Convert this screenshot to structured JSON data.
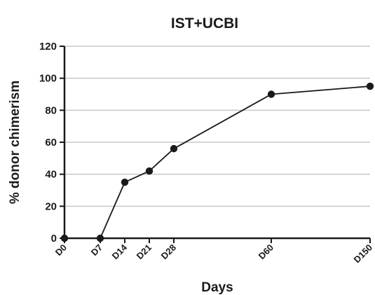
{
  "chart_data": {
    "type": "line",
    "title": "IST+UCBI",
    "xlabel": "Days",
    "ylabel": "% donor chimerism",
    "categories": [
      "D0",
      "D7",
      "D14",
      "D21",
      "D28",
      "D60",
      "D150"
    ],
    "x_positions": [
      0,
      7,
      14,
      21,
      28,
      60,
      150
    ],
    "series": [
      {
        "values": [
          0,
          0,
          35,
          42,
          56,
          90,
          95
        ]
      }
    ],
    "ylim": [
      0,
      120
    ],
    "yticks": [
      0,
      20,
      40,
      60,
      80,
      100,
      120
    ],
    "grid": "horizontal",
    "colors": {
      "line": "#1a1a1a",
      "grid": "#c8c8c8",
      "axis": "#1a1a1a"
    }
  }
}
